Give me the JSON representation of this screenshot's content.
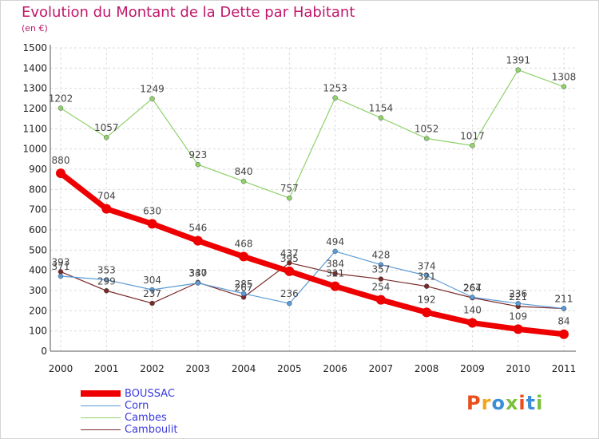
{
  "chart_data": {
    "type": "line",
    "title": "Evolution du Montant de la Dette par Habitant",
    "subtitle": "(en €)",
    "categories": [
      "2000",
      "2001",
      "2002",
      "2003",
      "2004",
      "2005",
      "2006",
      "2007",
      "2008",
      "2009",
      "2010",
      "2011"
    ],
    "ylim": [
      0,
      1500
    ],
    "yticks": [
      0,
      100,
      200,
      300,
      400,
      500,
      600,
      700,
      800,
      900,
      1000,
      1100,
      1200,
      1300,
      1400,
      1500
    ],
    "grid": true,
    "legend_position": "bottom-left",
    "series": [
      {
        "name": "BOUSSAC",
        "color": "#ee0000",
        "values": [
          880,
          704,
          630,
          546,
          468,
          395,
          321,
          254,
          192,
          140,
          109,
          84
        ]
      },
      {
        "name": "Corn",
        "color": "#5b9bd5",
        "values": [
          371,
          353,
          304,
          337,
          285,
          236,
          494,
          428,
          374,
          267,
          236,
          211
        ]
      },
      {
        "name": "Cambes",
        "color": "#8fd16a",
        "values": [
          1202,
          1057,
          1249,
          923,
          840,
          757,
          1253,
          1154,
          1052,
          1017,
          1391,
          1308
        ]
      },
      {
        "name": "Camboulit",
        "color": "#7a2a2a",
        "values": [
          393,
          299,
          237,
          340,
          267,
          437,
          384,
          357,
          321,
          264,
          221,
          211
        ]
      }
    ]
  },
  "logo": {
    "text": "Proxiti",
    "colors": [
      "#e94e1b",
      "#f7a41d",
      "#3b8fd9",
      "#7bbf3a",
      "#e94e1b",
      "#3b8fd9",
      "#7bbf3a"
    ]
  }
}
